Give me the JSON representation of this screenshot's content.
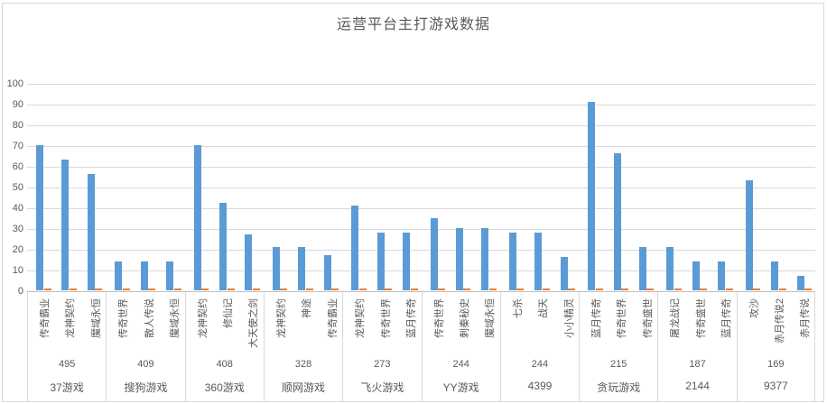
{
  "chart_data": {
    "type": "bar",
    "title": "运营平台主打游戏数据",
    "xlabel": "",
    "ylabel": "",
    "ylim": [
      0,
      100
    ],
    "yticks": [
      0,
      10,
      20,
      30,
      40,
      50,
      60,
      70,
      80,
      90,
      100
    ],
    "grid": true,
    "legend": "none",
    "series_colors": {
      "primary": "#5b9bd5",
      "secondary": "#ed7d31"
    },
    "secondary_series_value": 0.5,
    "groups": [
      {
        "platform": "37游戏",
        "total": "495",
        "games": [
          {
            "name": "传奇霸业",
            "value": 70
          },
          {
            "name": "龙神契约",
            "value": 63
          },
          {
            "name": "魔域永恒",
            "value": 56
          }
        ]
      },
      {
        "platform": "搜狗游戏",
        "total": "409",
        "games": [
          {
            "name": "传奇世界",
            "value": 14
          },
          {
            "name": "散人传说",
            "value": 14
          },
          {
            "name": "魔域永恒",
            "value": 14
          }
        ]
      },
      {
        "platform": "360游戏",
        "total": "408",
        "games": [
          {
            "name": "龙神契约",
            "value": 70
          },
          {
            "name": "修仙记",
            "value": 42
          },
          {
            "name": "大天使之剑",
            "value": 27
          }
        ]
      },
      {
        "platform": "顺网游戏",
        "total": "328",
        "games": [
          {
            "name": "龙神契约",
            "value": 21
          },
          {
            "name": "神途",
            "value": 21
          },
          {
            "name": "传奇霸业",
            "value": 17
          }
        ]
      },
      {
        "platform": "飞火游戏",
        "total": "273",
        "games": [
          {
            "name": "龙神契约",
            "value": 41
          },
          {
            "name": "传奇世界",
            "value": 28
          },
          {
            "name": "蓝月传奇",
            "value": 28
          }
        ]
      },
      {
        "platform": "YY游戏",
        "total": "244",
        "games": [
          {
            "name": "传奇世界",
            "value": 35
          },
          {
            "name": "刺秦秘史",
            "value": 30
          },
          {
            "name": "魔域永恒",
            "value": 30
          }
        ]
      },
      {
        "platform": "4399",
        "total": "244",
        "games": [
          {
            "name": "七杀",
            "value": 28
          },
          {
            "name": "战天",
            "value": 28
          },
          {
            "name": "小小精灵",
            "value": 16
          }
        ]
      },
      {
        "platform": "贪玩游戏",
        "total": "215",
        "games": [
          {
            "name": "蓝月传奇",
            "value": 91
          },
          {
            "name": "传奇世界",
            "value": 66
          },
          {
            "name": "传奇盛世",
            "value": 21
          }
        ]
      },
      {
        "platform": "2144",
        "total": "187",
        "games": [
          {
            "name": "屠龙战记",
            "value": 21
          },
          {
            "name": "传奇盛世",
            "value": 14
          },
          {
            "name": "蓝月传奇",
            "value": 14
          }
        ]
      },
      {
        "platform": "9377",
        "total": "169",
        "games": [
          {
            "name": "攻沙",
            "value": 53
          },
          {
            "name": "赤月传说2",
            "value": 14
          },
          {
            "name": "赤月传说",
            "value": 7
          }
        ]
      }
    ]
  },
  "layout_colors": {
    "gridline": "#d9d9d9",
    "axis_line": "#bfbfbf",
    "text": "#595959",
    "chart_border": "#d9d9d9"
  }
}
